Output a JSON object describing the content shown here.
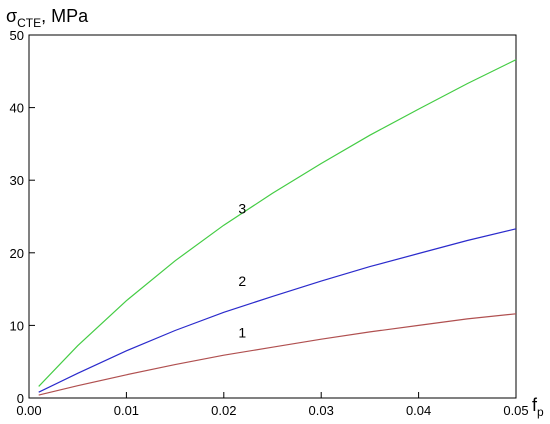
{
  "chart_data": {
    "type": "line",
    "ylabel_main": "σ",
    "ylabel_sub": "CTE",
    "ylabel_unit": ", MPa",
    "xlabel_main": "f",
    "xlabel_sub": "p",
    "xlim": [
      0,
      0.05
    ],
    "ylim": [
      0,
      50
    ],
    "x_ticks": [
      0,
      0.01,
      0.02,
      0.03,
      0.04,
      0.05
    ],
    "x_tick_labels": [
      "0.00",
      "0.01",
      "0.02",
      "0.03",
      "0.04",
      "0.05"
    ],
    "y_ticks": [
      0,
      10,
      20,
      30,
      40,
      50
    ],
    "y_tick_labels": [
      "0",
      "10",
      "20",
      "30",
      "40",
      "50"
    ],
    "grid": false,
    "series": [
      {
        "label": "1",
        "color": "#b05050",
        "x": [
          0.001,
          0.005,
          0.01,
          0.015,
          0.02,
          0.025,
          0.03,
          0.035,
          0.04,
          0.045,
          0.05
        ],
        "y": [
          0.4,
          1.7,
          3.2,
          4.6,
          5.9,
          7.0,
          8.1,
          9.1,
          10.0,
          10.9,
          11.6
        ],
        "label_at": [
          0.0215,
          8.3
        ]
      },
      {
        "label": "2",
        "color": "#2b2bcc",
        "x": [
          0.001,
          0.005,
          0.01,
          0.015,
          0.02,
          0.025,
          0.03,
          0.035,
          0.04,
          0.045,
          0.05
        ],
        "y": [
          0.8,
          3.4,
          6.5,
          9.3,
          11.8,
          14.0,
          16.1,
          18.1,
          19.9,
          21.7,
          23.3
        ],
        "label_at": [
          0.0215,
          15.4
        ]
      },
      {
        "label": "3",
        "color": "#44cc44",
        "x": [
          0.001,
          0.005,
          0.01,
          0.015,
          0.02,
          0.025,
          0.03,
          0.035,
          0.04,
          0.045,
          0.05
        ],
        "y": [
          1.6,
          7.2,
          13.4,
          18.9,
          23.8,
          28.2,
          32.3,
          36.2,
          39.8,
          43.3,
          46.6
        ],
        "label_at": [
          0.0215,
          25.4
        ]
      }
    ]
  }
}
